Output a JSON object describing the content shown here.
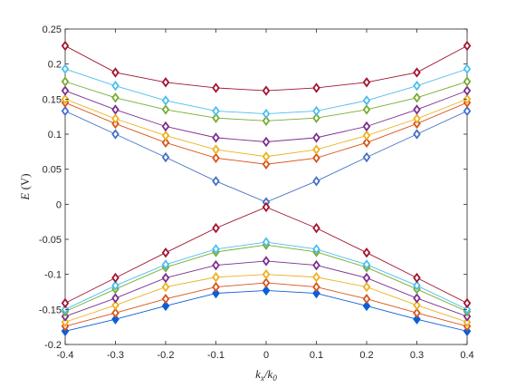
{
  "chart_data": {
    "type": "line",
    "title": "",
    "xlabel": "k_x/k_0",
    "ylabel": "E (V)",
    "xlim": [
      -0.4,
      0.4
    ],
    "ylim": [
      -0.2,
      0.25
    ],
    "xticks": [
      -0.4,
      -0.3,
      -0.2,
      -0.1,
      0,
      0.1,
      0.2,
      0.3,
      0.4
    ],
    "yticks": [
      -0.2,
      -0.15,
      -0.1,
      -0.05,
      0,
      0.05,
      0.1,
      0.15,
      0.2,
      0.25
    ],
    "xtick_labels": [
      "-0.4",
      "-0.3",
      "-0.2",
      "-0.1",
      "0",
      "0.1",
      "0.2",
      "0.3",
      "0.4"
    ],
    "ytick_labels": [
      "-0.2",
      "-0.15",
      "-0.1",
      "-0.05",
      "0",
      "0.05",
      "0.1",
      "0.15",
      "0.2",
      "0.25"
    ],
    "grid": false,
    "legend": "none",
    "marker": "diamond",
    "x": [
      -0.4,
      -0.3,
      -0.2,
      -0.1,
      0,
      0.1,
      0.2,
      0.3,
      0.4
    ],
    "series": [
      {
        "color": "#4472C4",
        "values": [
          0.133,
          0.1,
          0.067,
          0.033,
          0.003,
          0.033,
          0.067,
          0.1,
          0.133
        ]
      },
      {
        "color": "#D95319",
        "values": [
          0.145,
          0.115,
          0.088,
          0.066,
          0.057,
          0.066,
          0.088,
          0.115,
          0.145
        ]
      },
      {
        "color": "#EDB120",
        "values": [
          0.15,
          0.122,
          0.098,
          0.078,
          0.068,
          0.078,
          0.098,
          0.122,
          0.15
        ]
      },
      {
        "color": "#7E2F8E",
        "values": [
          0.162,
          0.135,
          0.111,
          0.095,
          0.089,
          0.095,
          0.111,
          0.135,
          0.162
        ]
      },
      {
        "color": "#77AC30",
        "values": [
          0.175,
          0.152,
          0.135,
          0.123,
          0.119,
          0.123,
          0.135,
          0.152,
          0.175
        ]
      },
      {
        "color": "#4DBEEE",
        "values": [
          0.193,
          0.169,
          0.148,
          0.133,
          0.129,
          0.133,
          0.148,
          0.169,
          0.193
        ]
      },
      {
        "color": "#A2142F",
        "values": [
          0.226,
          0.188,
          0.174,
          0.166,
          0.162,
          0.166,
          0.174,
          0.188,
          0.226
        ]
      },
      {
        "color": "#0B5ED7",
        "values": [
          -0.181,
          -0.164,
          -0.145,
          -0.127,
          -0.123,
          -0.127,
          -0.145,
          -0.164,
          -0.181
        ]
      },
      {
        "color": "#D95319",
        "values": [
          -0.174,
          -0.155,
          -0.135,
          -0.118,
          -0.112,
          -0.118,
          -0.135,
          -0.155,
          -0.174
        ]
      },
      {
        "color": "#EDB120",
        "values": [
          -0.168,
          -0.144,
          -0.118,
          -0.104,
          -0.1,
          -0.104,
          -0.118,
          -0.144,
          -0.168
        ]
      },
      {
        "color": "#7E2F8E",
        "values": [
          -0.16,
          -0.134,
          -0.105,
          -0.087,
          -0.081,
          -0.087,
          -0.105,
          -0.134,
          -0.16
        ]
      },
      {
        "color": "#77AC30",
        "values": [
          -0.153,
          -0.121,
          -0.09,
          -0.068,
          -0.058,
          -0.068,
          -0.09,
          -0.121,
          -0.153
        ]
      },
      {
        "color": "#4DBEEE",
        "values": [
          -0.15,
          -0.116,
          -0.086,
          -0.064,
          -0.054,
          -0.064,
          -0.086,
          -0.116,
          -0.15
        ]
      },
      {
        "color": "#A2142F",
        "values": [
          -0.141,
          -0.105,
          -0.069,
          -0.034,
          -0.004,
          -0.034,
          -0.069,
          -0.105,
          -0.141
        ]
      }
    ]
  }
}
